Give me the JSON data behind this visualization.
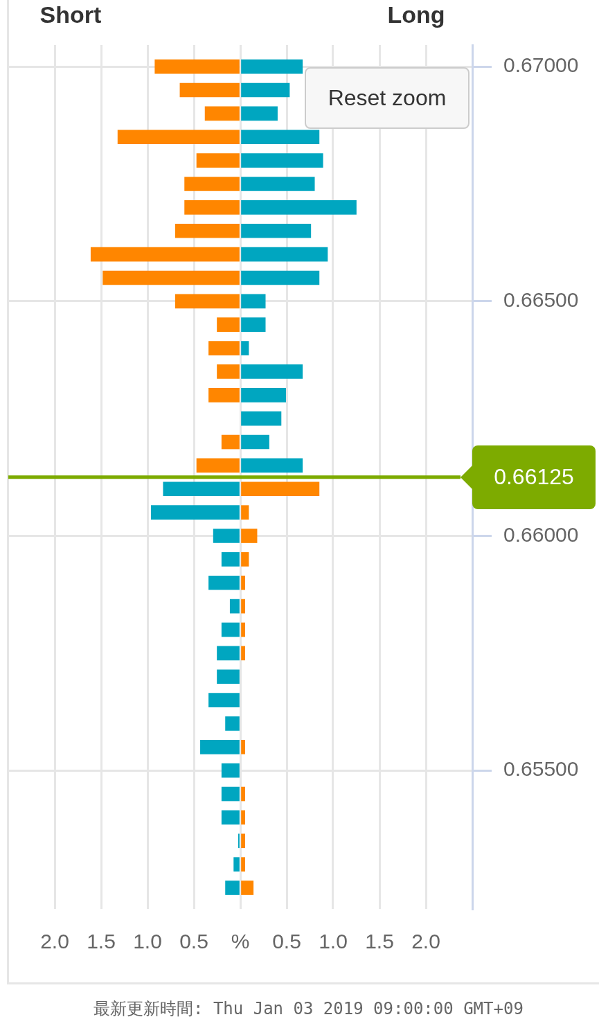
{
  "chart_data": {
    "type": "bar",
    "orientation": "horizontal",
    "stacked": true,
    "x": [
      0.67,
      0.6695,
      0.669,
      0.6685,
      0.668,
      0.6675,
      0.667,
      0.6665,
      0.666,
      0.6655,
      0.665,
      0.6645,
      0.664,
      0.6635,
      0.663,
      0.6625,
      0.662,
      0.6615,
      0.661,
      0.6605,
      0.66,
      0.6595,
      0.659,
      0.6585,
      0.658,
      0.6575,
      0.657,
      0.6565,
      0.656,
      0.6555,
      0.655,
      0.6545,
      0.654,
      0.6535,
      0.653,
      0.6525
    ],
    "series": [
      {
        "color": "#ff8600",
        "values": [
          -0.92,
          -0.65,
          -0.38,
          -1.32,
          -0.47,
          -0.6,
          -0.6,
          -0.7,
          -1.61,
          -1.48,
          -0.7,
          -0.25,
          -0.34,
          -0.25,
          -0.34,
          null,
          -0.2,
          -0.47,
          0.85,
          0.09,
          0.18,
          0.09,
          0.05,
          0.05,
          0.05,
          0.05,
          null,
          null,
          null,
          0.05,
          null,
          0.05,
          0.05,
          0.05,
          0.05,
          0.14
        ]
      },
      {
        "color": "#00a6c0",
        "values": [
          0.67,
          0.53,
          0.4,
          0.85,
          0.89,
          0.8,
          1.25,
          0.76,
          0.94,
          0.85,
          0.27,
          0.27,
          0.09,
          0.67,
          0.49,
          0.44,
          0.31,
          0.67,
          -0.83,
          -0.96,
          -0.29,
          -0.2,
          -0.34,
          -0.11,
          -0.2,
          -0.25,
          -0.25,
          -0.34,
          -0.16,
          -0.43,
          -0.2,
          -0.2,
          -0.2,
          -0.02,
          -0.07,
          -0.16
        ]
      }
    ],
    "xlim": [
      -2.5,
      2.5
    ],
    "xticks": [
      {
        "value": -2,
        "label": "2.0"
      },
      {
        "value": -1.5,
        "label": "1.5"
      },
      {
        "value": -1,
        "label": "1.0"
      },
      {
        "value": -0.5,
        "label": "0.5"
      },
      {
        "value": 0,
        "label": "%"
      },
      0.5,
      {
        "value": 1,
        "label": "1.0"
      },
      1.5,
      {
        "value": 2,
        "label": "2.0"
      }
    ],
    "ylim": [
      0.65205,
      0.67046
    ],
    "yticks": [
      {
        "value": 0.655,
        "label": "0.65500"
      },
      {
        "value": 0.66,
        "label": "0.66000"
      },
      {
        "value": 0.665,
        "label": "0.66500"
      },
      {
        "value": 0.67,
        "label": "0.67000"
      }
    ],
    "grid": true,
    "ref_lines": [
      {
        "axis": "y",
        "value": 0.66125,
        "label": "0.66125",
        "color": "#7dab00"
      }
    ],
    "annotations": [
      "Short",
      "Long",
      "Reset zoom",
      "最新更新時間: Thu Jan 03 2019 09:00:00 GMT+09"
    ]
  }
}
